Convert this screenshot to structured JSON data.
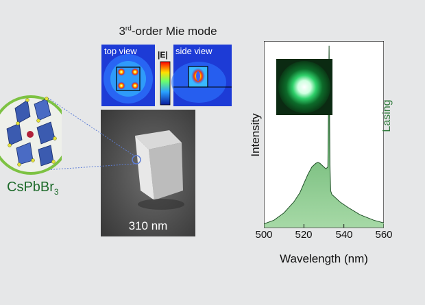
{
  "figure": {
    "title_main": "3",
    "title_sup": "rd",
    "title_rest": "-order Mie mode",
    "top_view_label": "top view",
    "side_view_label": "side view",
    "colorbar_label": "|E|",
    "crystal_formula_main": "CsPbBr",
    "crystal_formula_sub": "3",
    "sem_scale_label": "310 nm",
    "colors": {
      "accent_green": "#7dc243",
      "text_green": "#1e6b2b",
      "octahedron_blue": "#3b5bb0"
    }
  },
  "chart_data": {
    "type": "area",
    "xlabel": "Wavelength (nm)",
    "ylabel": "Intensity",
    "x_ticks": [
      "500",
      "520",
      "540",
      "560"
    ],
    "xlim": [
      500,
      560
    ],
    "ylim": [
      0,
      1
    ],
    "annotation": "Lasing",
    "series": [
      {
        "x": [
          500,
          505,
          510,
          515,
          518,
          520,
          522,
          524,
          526,
          527,
          528,
          530,
          531,
          532,
          532.6,
          533,
          533.4,
          534,
          535,
          538,
          542,
          548,
          555,
          560
        ],
        "y": [
          0.02,
          0.04,
          0.08,
          0.14,
          0.19,
          0.24,
          0.29,
          0.33,
          0.35,
          0.355,
          0.35,
          0.33,
          0.32,
          0.33,
          0.99,
          0.34,
          0.2,
          0.18,
          0.17,
          0.14,
          0.11,
          0.07,
          0.04,
          0.025
        ]
      }
    ]
  }
}
